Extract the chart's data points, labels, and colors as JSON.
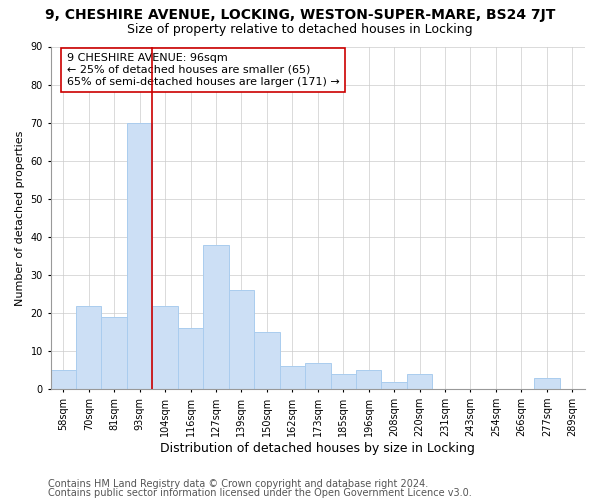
{
  "title": "9, CHESHIRE AVENUE, LOCKING, WESTON-SUPER-MARE, BS24 7JT",
  "subtitle": "Size of property relative to detached houses in Locking",
  "xlabel": "Distribution of detached houses by size in Locking",
  "ylabel": "Number of detached properties",
  "categories": [
    "58sqm",
    "70sqm",
    "81sqm",
    "93sqm",
    "104sqm",
    "116sqm",
    "127sqm",
    "139sqm",
    "150sqm",
    "162sqm",
    "173sqm",
    "185sqm",
    "196sqm",
    "208sqm",
    "220sqm",
    "231sqm",
    "243sqm",
    "254sqm",
    "266sqm",
    "277sqm",
    "289sqm"
  ],
  "values": [
    5,
    22,
    19,
    70,
    22,
    16,
    38,
    26,
    15,
    6,
    7,
    4,
    5,
    2,
    4,
    0,
    0,
    0,
    0,
    3,
    0
  ],
  "bar_color": "#ccdff5",
  "bar_edge_color": "#aaccee",
  "vline_color": "#cc0000",
  "vline_bar_index": 3,
  "annotation_text": "9 CHESHIRE AVENUE: 96sqm\n← 25% of detached houses are smaller (65)\n65% of semi-detached houses are larger (171) →",
  "annotation_box_facecolor": "white",
  "annotation_box_edgecolor": "#cc0000",
  "ylim": [
    0,
    90
  ],
  "yticks": [
    0,
    10,
    20,
    30,
    40,
    50,
    60,
    70,
    80,
    90
  ],
  "footer1": "Contains HM Land Registry data © Crown copyright and database right 2024.",
  "footer2": "Contains public sector information licensed under the Open Government Licence v3.0.",
  "title_fontsize": 10,
  "subtitle_fontsize": 9,
  "xlabel_fontsize": 9,
  "ylabel_fontsize": 8,
  "tick_fontsize": 7,
  "annotation_fontsize": 8,
  "footer_fontsize": 7,
  "background_color": "#ffffff"
}
